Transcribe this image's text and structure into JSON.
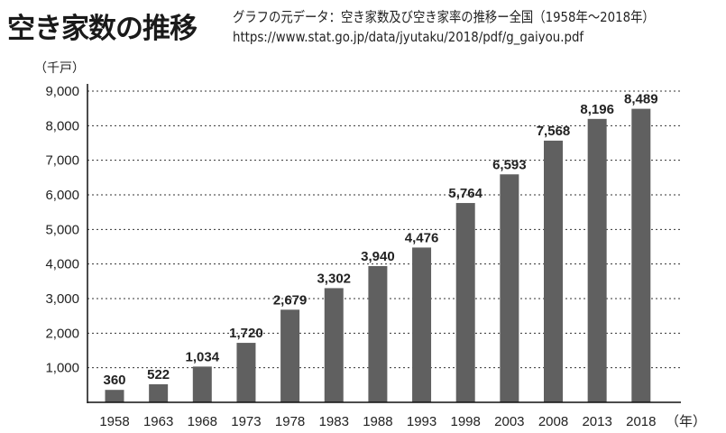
{
  "header": {
    "title": "空き家数の推移",
    "source_line1": "グラフの元データ：空き家数及び空き家率の推移ー全国（1958年〜2018年）",
    "source_line2": "https://www.stat.go.jp/data/jyutaku/2018/pdf/g_gaiyou.pdf"
  },
  "chart_data": {
    "type": "bar",
    "title": "空き家数の推移",
    "ylabel": "（千戸）",
    "xlabel": "（年）",
    "categories": [
      "1958",
      "1963",
      "1968",
      "1973",
      "1978",
      "1983",
      "1988",
      "1993",
      "1998",
      "2003",
      "2008",
      "2013",
      "2018"
    ],
    "values": [
      360,
      522,
      1034,
      1720,
      2679,
      3302,
      3940,
      4476,
      5764,
      6593,
      7568,
      8196,
      8489
    ],
    "data_labels": [
      "360",
      "522",
      "1,034",
      "1,720",
      "2,679",
      "3,302",
      "3,940",
      "4,476",
      "5,764",
      "6,593",
      "7,568",
      "8,196",
      "8,489"
    ],
    "yticks": [
      1000,
      2000,
      3000,
      4000,
      5000,
      6000,
      7000,
      8000,
      9000
    ],
    "ytick_labels": [
      "1,000",
      "2,000",
      "3,000",
      "4,000",
      "5,000",
      "6,000",
      "7,000",
      "8,000",
      "9,000"
    ],
    "ylim": [
      0,
      9000
    ],
    "grid": "horizontal dotted",
    "legend": "none",
    "bar_color": "#606060"
  }
}
